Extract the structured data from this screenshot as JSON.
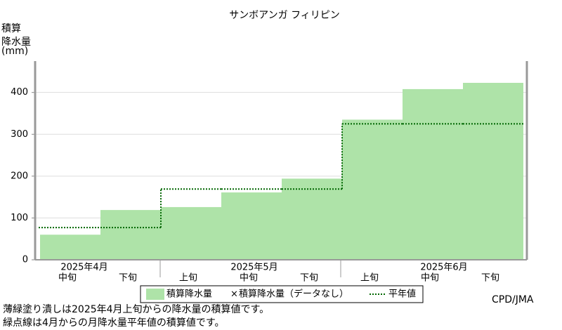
{
  "chart_data": {
    "type": "bar",
    "title": "サンボアンガ フィリピン",
    "ylabel": [
      "積算",
      "降水量",
      "(mm)"
    ],
    "months": [
      "2025年4月",
      "2025年5月",
      "2025年6月"
    ],
    "categories": [
      "中旬",
      "下旬",
      "上旬",
      "中旬",
      "下旬",
      "上旬",
      "中旬",
      "下旬"
    ],
    "series": [
      {
        "name": "積算降水量",
        "color": "#aee3a8",
        "values": [
          60,
          119,
          126,
          161,
          194,
          335,
          408,
          423
        ]
      },
      {
        "name": "積算降水量（データなし）",
        "color": "#000000",
        "values": [
          null,
          null,
          null,
          null,
          null,
          null,
          null,
          null
        ]
      },
      {
        "name": "平年値",
        "color": "#006600",
        "values": [
          77,
          77,
          169,
          169,
          169,
          325,
          325,
          325
        ]
      }
    ],
    "ylim": [
      0,
      475
    ],
    "yticks": [
      0,
      100,
      200,
      300,
      400
    ],
    "grid": true,
    "source": "CPD/JMA",
    "notes": [
      "薄緑塗り潰しは2025年4月上旬からの降水量の積算値です。",
      "緑点線は4月からの月降水量平年値の積算値です。"
    ]
  }
}
